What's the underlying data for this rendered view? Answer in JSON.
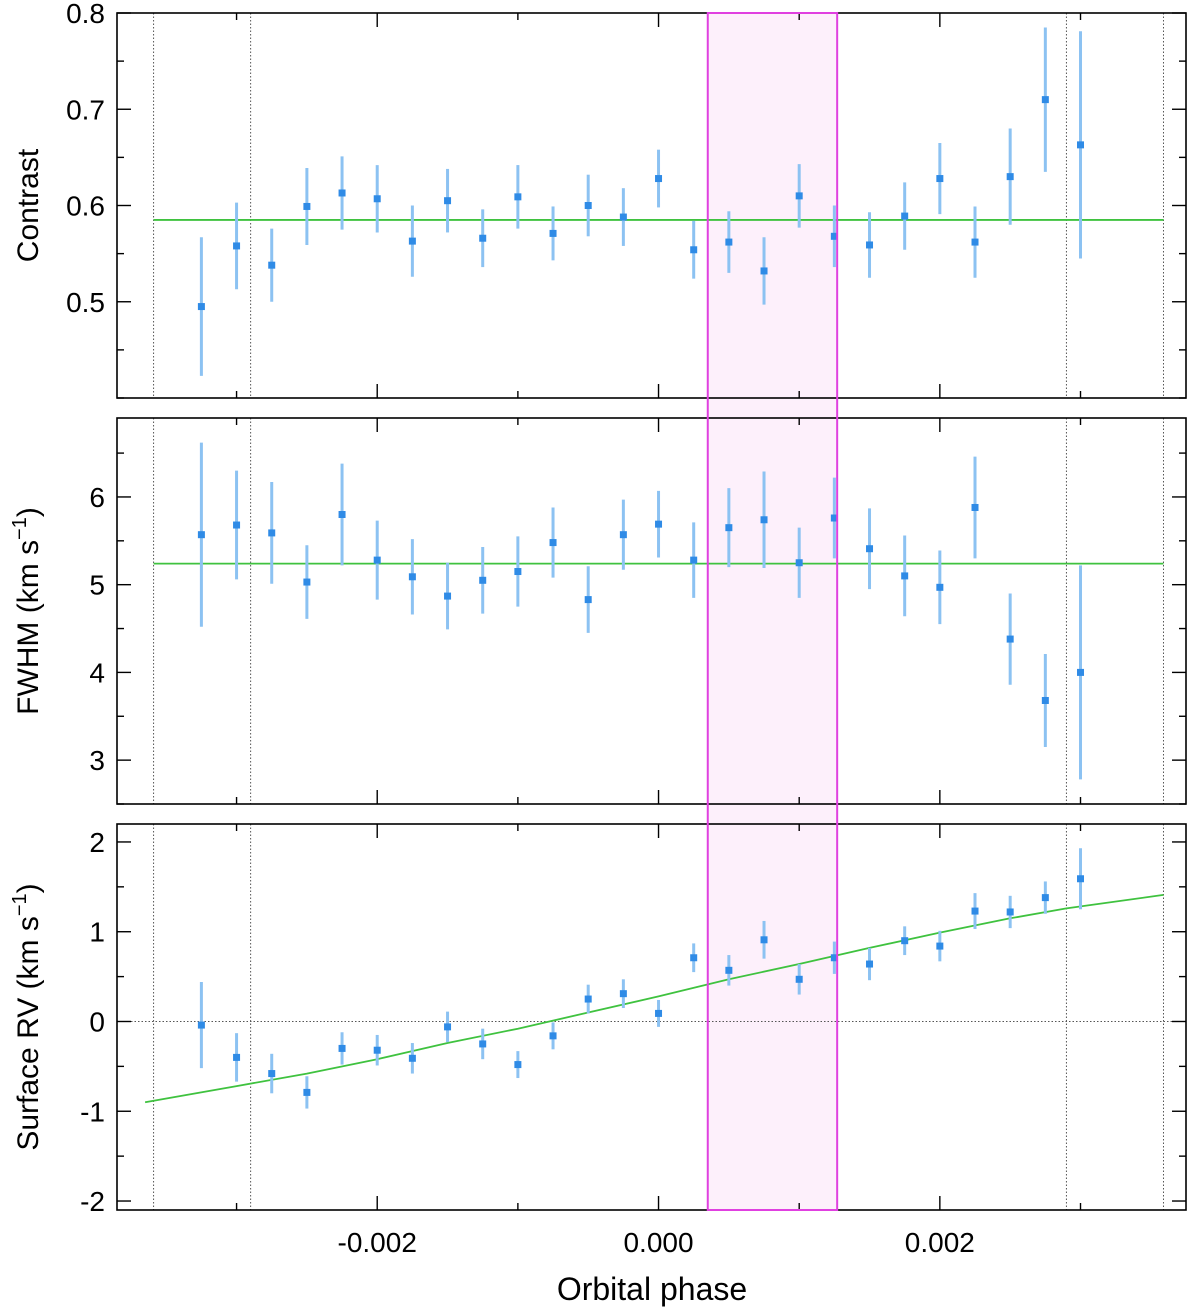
{
  "figure": {
    "xlabel": "Orbital phase",
    "x_ticks": [
      -0.002,
      0.0,
      0.002
    ],
    "x_tick_labels": [
      "-0.002",
      "0.000",
      "0.002"
    ],
    "xlim": [
      -0.00385,
      0.00375
    ],
    "contact_phases": [
      -0.00359,
      -0.0029,
      0.0029,
      0.00359
    ],
    "transit_window": [
      0.00035,
      0.00127
    ],
    "colors": {
      "points": "#2f8be6",
      "errorbars": "#8cc2f2",
      "model": "#3fc23f",
      "window_fill": "#fdf0fb",
      "window_edge": "#e040e0"
    }
  },
  "chart_data": [
    {
      "type": "scatter",
      "ylabel": "Contrast",
      "ylim": [
        0.4,
        0.8
      ],
      "yticks": [
        0.5,
        0.6,
        0.7,
        0.8
      ],
      "ytick_labels": [
        "0.5",
        "0.6",
        "0.7",
        "0.8"
      ],
      "minor_step": 0.05,
      "model_level": 0.585,
      "zero_line": false,
      "x": [
        -0.00325,
        -0.003,
        -0.00275,
        -0.0025,
        -0.00225,
        -0.002,
        -0.00175,
        -0.0015,
        -0.00125,
        -0.001,
        -0.00075,
        -0.0005,
        -0.00025,
        0.0,
        0.00025,
        0.0005,
        0.00075,
        0.001,
        0.00125,
        0.0015,
        0.00175,
        0.002,
        0.00225,
        0.0025,
        0.00275,
        0.003
      ],
      "y": [
        0.495,
        0.558,
        0.538,
        0.599,
        0.613,
        0.607,
        0.563,
        0.605,
        0.566,
        0.609,
        0.571,
        0.6,
        0.588,
        0.628,
        0.554,
        0.562,
        0.532,
        0.61,
        0.568,
        0.559,
        0.589,
        0.628,
        0.562,
        0.63,
        0.71,
        0.663
      ],
      "yerr": [
        0.072,
        0.045,
        0.038,
        0.04,
        0.038,
        0.035,
        0.037,
        0.033,
        0.03,
        0.033,
        0.028,
        0.032,
        0.03,
        0.03,
        0.03,
        0.032,
        0.035,
        0.033,
        0.032,
        0.034,
        0.035,
        0.037,
        0.037,
        0.05,
        0.075,
        0.118
      ]
    },
    {
      "type": "scatter",
      "ylabel": "FWHM (km s",
      "ylabel_sup": "−1",
      "ylabel_end": ")",
      "ylim": [
        2.5,
        6.9
      ],
      "yticks": [
        3,
        4,
        5,
        6
      ],
      "ytick_labels": [
        "3",
        "4",
        "5",
        "6"
      ],
      "minor_step": 0.5,
      "model_level": 5.24,
      "zero_line": false,
      "x": [
        -0.00325,
        -0.003,
        -0.00275,
        -0.0025,
        -0.00225,
        -0.002,
        -0.00175,
        -0.0015,
        -0.00125,
        -0.001,
        -0.00075,
        -0.0005,
        -0.00025,
        0.0,
        0.00025,
        0.0005,
        0.00075,
        0.001,
        0.00125,
        0.0015,
        0.00175,
        0.002,
        0.00225,
        0.0025,
        0.00275,
        0.003
      ],
      "y": [
        5.57,
        5.68,
        5.59,
        5.03,
        5.8,
        5.28,
        5.09,
        4.87,
        5.05,
        5.15,
        5.48,
        4.83,
        5.57,
        5.69,
        5.28,
        5.65,
        5.74,
        5.25,
        5.76,
        5.41,
        5.1,
        4.97,
        5.88,
        4.38,
        3.68,
        4.0
      ],
      "yerr": [
        1.05,
        0.62,
        0.58,
        0.42,
        0.58,
        0.45,
        0.43,
        0.38,
        0.38,
        0.4,
        0.4,
        0.38,
        0.4,
        0.38,
        0.43,
        0.45,
        0.55,
        0.4,
        0.46,
        0.46,
        0.46,
        0.42,
        0.58,
        0.52,
        0.53,
        1.22
      ]
    },
    {
      "type": "scatter",
      "ylabel": "Surface RV (km s",
      "ylabel_sup": "−1",
      "ylabel_end": ")",
      "ylim": [
        -2.1,
        2.2
      ],
      "yticks": [
        -2,
        -1,
        0,
        1,
        2
      ],
      "ytick_labels": [
        "-2",
        "-1",
        "0",
        "1",
        "2"
      ],
      "minor_step": 0.5,
      "zero_line": true,
      "model_curve": {
        "x": [
          -0.00365,
          -0.003,
          -0.0025,
          -0.002,
          -0.0015,
          -0.001,
          -0.0005,
          0.0,
          0.0005,
          0.001,
          0.0015,
          0.002,
          0.0025,
          0.0029,
          0.00359
        ],
        "y": [
          -0.9,
          -0.72,
          -0.58,
          -0.42,
          -0.24,
          -0.08,
          0.1,
          0.28,
          0.47,
          0.64,
          0.82,
          0.99,
          1.15,
          1.26,
          1.41
        ]
      },
      "x": [
        -0.00325,
        -0.003,
        -0.00275,
        -0.0025,
        -0.00225,
        -0.002,
        -0.00175,
        -0.0015,
        -0.00125,
        -0.001,
        -0.00075,
        -0.0005,
        -0.00025,
        0.0,
        0.00025,
        0.0005,
        0.00075,
        0.001,
        0.00125,
        0.0015,
        0.00175,
        0.002,
        0.00225,
        0.0025,
        0.00275,
        0.003
      ],
      "y": [
        -0.04,
        -0.4,
        -0.58,
        -0.79,
        -0.3,
        -0.32,
        -0.41,
        -0.06,
        -0.25,
        -0.48,
        -0.16,
        0.25,
        0.31,
        0.09,
        0.71,
        0.57,
        0.91,
        0.47,
        0.71,
        0.64,
        0.9,
        0.84,
        1.23,
        1.22,
        1.38,
        1.59
      ],
      "yerr": [
        0.48,
        0.27,
        0.22,
        0.18,
        0.18,
        0.17,
        0.17,
        0.17,
        0.17,
        0.15,
        0.15,
        0.16,
        0.16,
        0.15,
        0.16,
        0.17,
        0.21,
        0.17,
        0.18,
        0.18,
        0.16,
        0.17,
        0.2,
        0.18,
        0.18,
        0.34
      ]
    }
  ]
}
